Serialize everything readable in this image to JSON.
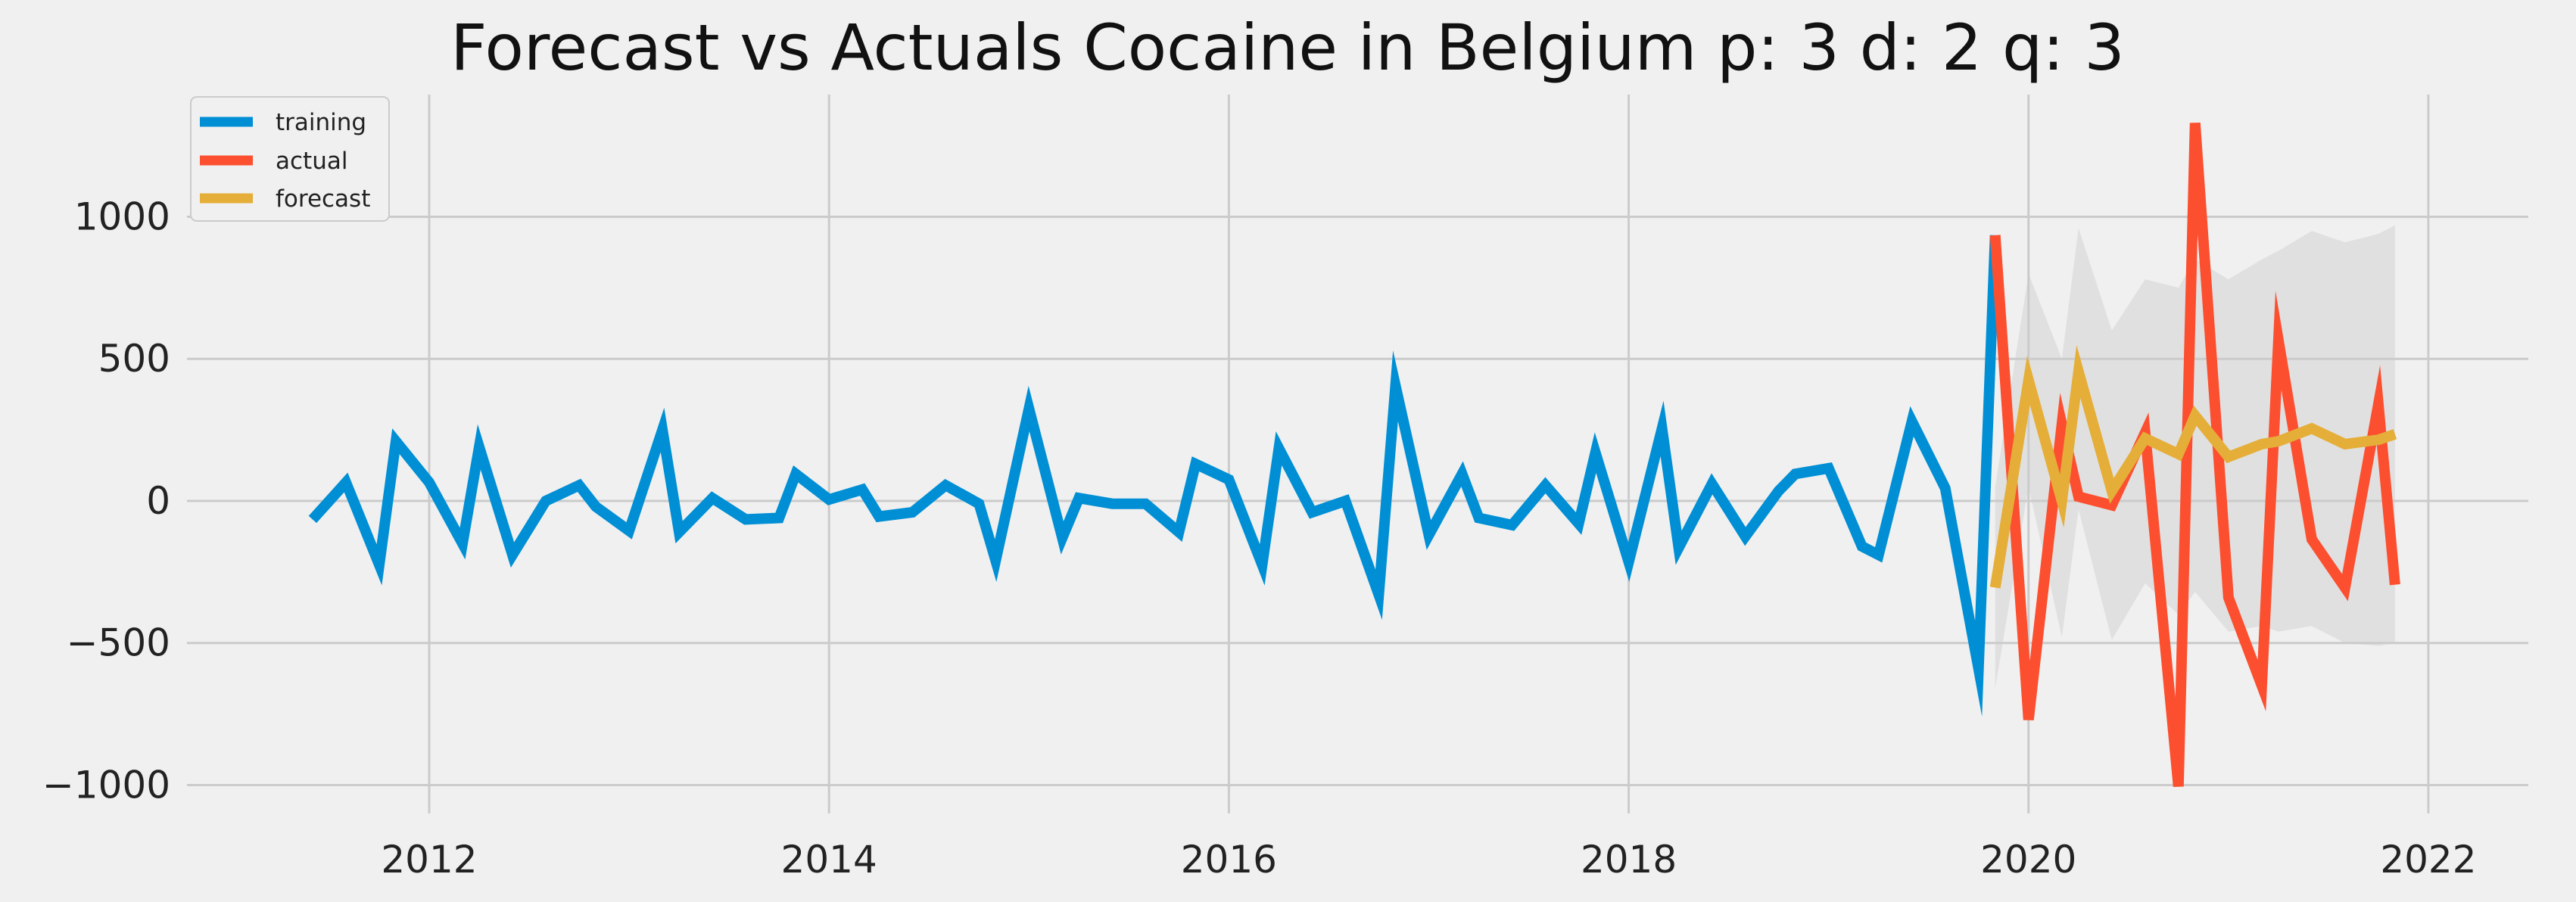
{
  "chart_data": {
    "type": "line",
    "title": "Forecast vs Actuals Cocaine in Belgium p: 3 d: 2 q: 3",
    "xlabel": "",
    "ylabel": "",
    "x_axis": {
      "type": "date",
      "range": [
        "2010-10-15",
        "2022-07-01"
      ],
      "ticks": [
        "2012",
        "2014",
        "2016",
        "2018",
        "2020",
        "2022"
      ]
    },
    "y_axis": {
      "range": [
        -1100,
        1430
      ],
      "ticks": [
        -1000,
        -500,
        0,
        500,
        1000
      ],
      "tick_labels": [
        "−1000",
        "−500",
        "0",
        "500",
        "1000"
      ]
    },
    "grid": true,
    "legend": {
      "placement": "top-left",
      "entries": [
        "training",
        "actual",
        "forecast"
      ]
    },
    "colors": {
      "training": "#008fd5",
      "actual": "#fc4f30",
      "forecast": "#e5ae38",
      "confidence_band": "#cccccc",
      "background": "#f0f0f0",
      "grid": "#cbcbcb"
    },
    "series": [
      {
        "name": "training",
        "x": [
          "2011-06",
          "2011-08",
          "2011-10",
          "2011-11",
          "2012-01",
          "2012-03",
          "2012-04",
          "2012-06",
          "2012-08",
          "2012-10",
          "2012-11",
          "2013-01",
          "2013-03",
          "2013-04",
          "2013-06",
          "2013-08",
          "2013-10",
          "2013-11",
          "2014-01",
          "2014-03",
          "2014-04",
          "2014-06",
          "2014-08",
          "2014-10",
          "2014-11",
          "2015-01",
          "2015-03",
          "2015-04",
          "2015-06",
          "2015-08",
          "2015-10",
          "2015-11",
          "2016-01",
          "2016-03",
          "2016-04",
          "2016-06",
          "2016-08",
          "2016-10",
          "2016-11",
          "2017-01",
          "2017-03",
          "2017-04",
          "2017-06",
          "2017-08",
          "2017-10",
          "2017-11",
          "2018-01",
          "2018-03",
          "2018-04",
          "2018-06",
          "2018-08",
          "2018-10",
          "2018-11",
          "2019-01",
          "2019-03",
          "2019-04",
          "2019-06",
          "2019-08",
          "2019-10",
          "2019-11"
        ],
        "values": [
          -65,
          65,
          -225,
          210,
          65,
          -150,
          190,
          -190,
          0,
          55,
          -20,
          -105,
          250,
          -110,
          10,
          -65,
          -60,
          95,
          5,
          40,
          -55,
          -40,
          55,
          -10,
          -210,
          325,
          -130,
          10,
          -10,
          -10,
          -110,
          130,
          75,
          -225,
          185,
          -40,
          0,
          -330,
          405,
          -120,
          95,
          -60,
          -85,
          55,
          -80,
          170,
          -215,
          255,
          -165,
          60,
          -125,
          35,
          95,
          115,
          -160,
          -190,
          280,
          45,
          -590,
          935
        ]
      },
      {
        "name": "actual",
        "x": [
          "2019-11",
          "2020-01",
          "2020-03",
          "2020-04",
          "2020-06",
          "2020-08",
          "2020-10",
          "2020-11",
          "2021-01",
          "2021-03",
          "2021-04",
          "2021-06",
          "2021-08",
          "2021-10",
          "2021-11"
        ],
        "values": [
          935,
          -770,
          270,
          15,
          -15,
          240,
          -1005,
          1330,
          -340,
          -650,
          565,
          -135,
          -305,
          340,
          -295
        ]
      },
      {
        "name": "forecast",
        "x": [
          "2019-11",
          "2020-01",
          "2020-03",
          "2020-04",
          "2020-06",
          "2020-08",
          "2020-10",
          "2020-11",
          "2021-01",
          "2021-03",
          "2021-04",
          "2021-06",
          "2021-08",
          "2021-10",
          "2021-11"
        ],
        "values": [
          -305,
          425,
          0,
          455,
          35,
          220,
          165,
          300,
          155,
          200,
          210,
          255,
          200,
          215,
          235
        ]
      }
    ],
    "confidence_band": {
      "x": [
        "2019-11",
        "2020-01",
        "2020-03",
        "2020-04",
        "2020-06",
        "2020-08",
        "2020-10",
        "2020-11",
        "2021-01",
        "2021-03",
        "2021-04",
        "2021-06",
        "2021-08",
        "2021-10",
        "2021-11"
      ],
      "upper": [
        50,
        800,
        500,
        960,
        600,
        780,
        750,
        850,
        780,
        850,
        880,
        950,
        910,
        940,
        970
      ],
      "lower": [
        -660,
        50,
        -480,
        -30,
        -490,
        -290,
        -400,
        -320,
        -460,
        -440,
        -460,
        -440,
        -500,
        -510,
        -500
      ]
    }
  }
}
